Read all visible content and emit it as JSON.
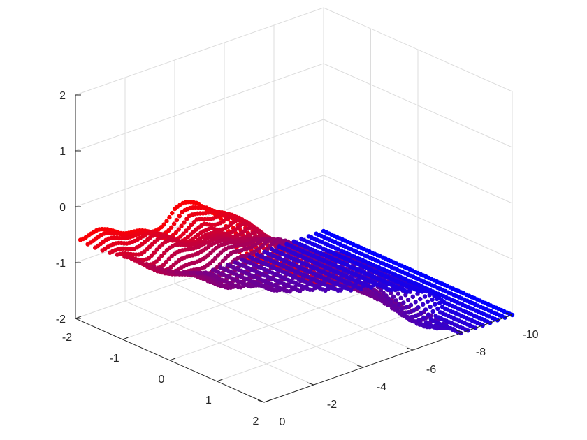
{
  "chart_data": {
    "type": "scatter3d",
    "title": "",
    "xlabel": "",
    "ylabel": "",
    "zlabel": "",
    "grid": true,
    "box": "open",
    "view": "matlab-default-3d",
    "axes": {
      "x": {
        "lim": [
          -2,
          2
        ],
        "ticks": [
          -2,
          -1,
          0,
          1,
          2
        ],
        "tick_labels": [
          "-2",
          "-1",
          "0",
          "1",
          "2"
        ]
      },
      "y": {
        "lim": [
          -10,
          0
        ],
        "ticks": [
          -10,
          -8,
          -6,
          -4,
          -2,
          0
        ],
        "tick_labels": [
          "-10",
          "-8",
          "-6",
          "-4",
          "-2",
          "0"
        ]
      },
      "z": {
        "lim": [
          -2,
          2
        ],
        "ticks": [
          -2,
          -1,
          0,
          1,
          2
        ],
        "tick_labels": [
          "-2",
          "-1",
          "0",
          "1",
          "2"
        ]
      }
    },
    "colormap": {
      "low": "#0000ff",
      "mid": "#800080",
      "high": "#ff0000",
      "by": "y"
    },
    "series": [
      {
        "marker": "filled-point",
        "strip_count": 34,
        "x_range": [
          -2,
          2
        ],
        "y_range": [
          -10,
          -0.2
        ],
        "z_profile_x": [
          -2,
          -1.5,
          -1,
          -0.5,
          0,
          0.5,
          1,
          1.5,
          2
        ],
        "z_profile_y": [
          -1.2,
          -1.05,
          -0.75,
          -0.45,
          0.05,
          0.25,
          0.15,
          -0.15,
          -0.1
        ],
        "z_trend_per_y": 0.32,
        "z_intercept": 0.7
      }
    ]
  }
}
